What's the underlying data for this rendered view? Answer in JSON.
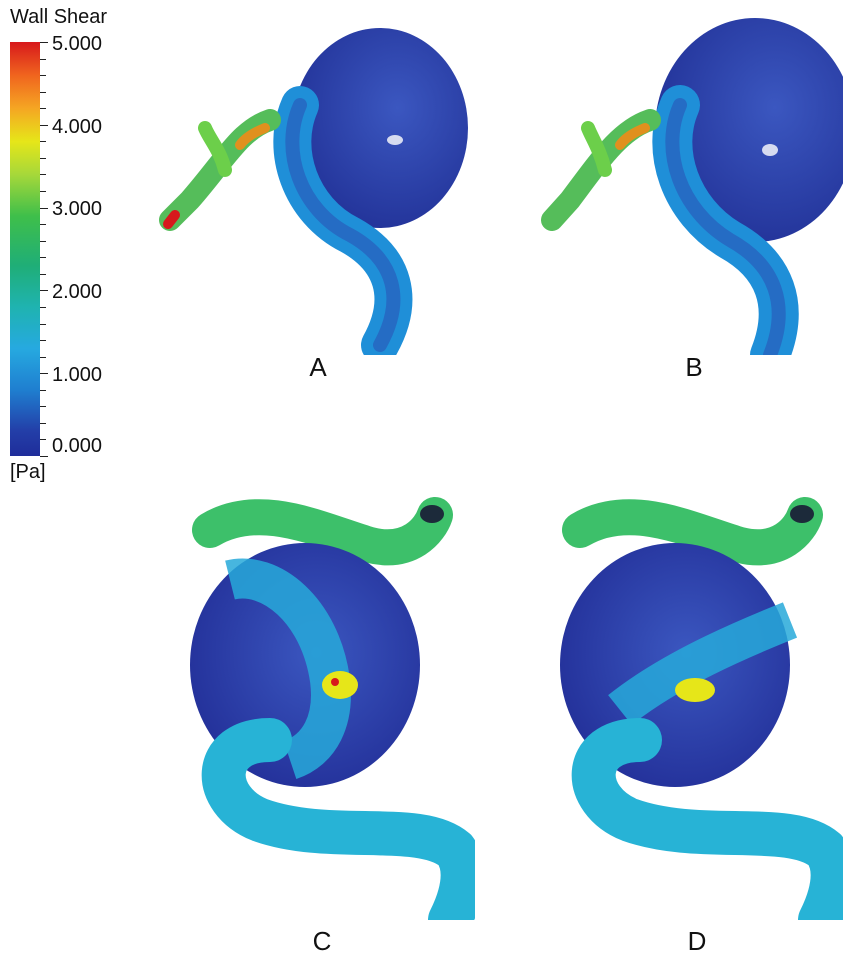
{
  "legend": {
    "title": "Wall Shear",
    "unit": "[Pa]",
    "tick_labels": [
      "5.000",
      "4.000",
      "3.000",
      "2.000",
      "1.000",
      "0.000"
    ],
    "max": 5.0,
    "min": 0.0
  },
  "panels": [
    {
      "label": "A"
    },
    {
      "label": "B"
    },
    {
      "label": "C"
    },
    {
      "label": "D"
    }
  ]
}
